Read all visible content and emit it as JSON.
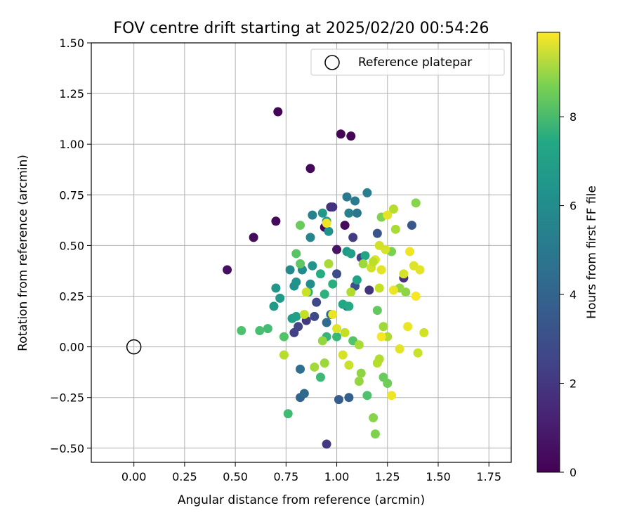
{
  "chart_data": {
    "type": "scatter",
    "title": "FOV centre drift starting at 2025/02/20 00:54:26",
    "xlabel": "Angular distance from reference (arcmin)",
    "ylabel": "Rotation from reference (arcmin)",
    "xlim": [
      -0.21,
      1.86
    ],
    "ylim": [
      -0.57,
      1.5
    ],
    "xticks": [
      0.0,
      0.25,
      0.5,
      0.75,
      1.0,
      1.25,
      1.5,
      1.75
    ],
    "xtick_labels": [
      "0.00",
      "0.25",
      "0.50",
      "0.75",
      "1.00",
      "1.25",
      "1.50",
      "1.75"
    ],
    "yticks": [
      -0.5,
      -0.25,
      0.0,
      0.25,
      0.5,
      0.75,
      1.0,
      1.25,
      1.5
    ],
    "ytick_labels": [
      "−0.50",
      "−0.25",
      "0.00",
      "0.25",
      "0.50",
      "0.75",
      "1.00",
      "1.25",
      "1.50"
    ],
    "grid": true,
    "legend": {
      "position": "top-right",
      "entries": [
        "Reference platepar"
      ]
    },
    "reference_point": {
      "x": 0.0,
      "y": 0.0,
      "marker": "hollow-circle"
    },
    "colorbar": {
      "label": "Hours from first FF file",
      "range": [
        0,
        9.9
      ],
      "ticks": [
        0,
        2,
        4,
        6,
        8
      ],
      "tick_labels": [
        "0",
        "2",
        "4",
        "6",
        "8"
      ],
      "colormap": "viridis"
    },
    "series": [
      {
        "marker": "filled-circle",
        "points": [
          {
            "x": 0.71,
            "y": 1.16,
            "h": 0.1
          },
          {
            "x": 1.02,
            "y": 1.05,
            "h": 0.1
          },
          {
            "x": 1.07,
            "y": 1.04,
            "h": 0.1
          },
          {
            "x": 0.87,
            "y": 0.88,
            "h": 0.2
          },
          {
            "x": 0.7,
            "y": 0.62,
            "h": 0.2
          },
          {
            "x": 0.59,
            "y": 0.54,
            "h": 0.3
          },
          {
            "x": 0.46,
            "y": 0.38,
            "h": 0.4
          },
          {
            "x": 0.94,
            "y": 0.59,
            "h": 0.3
          },
          {
            "x": 1.04,
            "y": 0.6,
            "h": 0.3
          },
          {
            "x": 1.0,
            "y": 0.48,
            "h": 0.5
          },
          {
            "x": 0.97,
            "y": 0.69,
            "h": 1.4
          },
          {
            "x": 0.98,
            "y": 0.69,
            "h": 1.5
          },
          {
            "x": 0.95,
            "y": -0.48,
            "h": 1.6
          },
          {
            "x": 1.08,
            "y": 0.54,
            "h": 1.7
          },
          {
            "x": 1.16,
            "y": 0.28,
            "h": 1.5
          },
          {
            "x": 1.33,
            "y": 0.34,
            "h": 1.4
          },
          {
            "x": 1.12,
            "y": 0.44,
            "h": 1.8
          },
          {
            "x": 0.85,
            "y": 0.13,
            "h": 1.6
          },
          {
            "x": 0.79,
            "y": 0.07,
            "h": 1.9
          },
          {
            "x": 0.81,
            "y": 0.1,
            "h": 2.0
          },
          {
            "x": 0.89,
            "y": 0.15,
            "h": 2.2
          },
          {
            "x": 0.9,
            "y": 0.22,
            "h": 2.1
          },
          {
            "x": 1.0,
            "y": 0.36,
            "h": 2.3
          },
          {
            "x": 1.09,
            "y": 0.3,
            "h": 2.4
          },
          {
            "x": 1.2,
            "y": 0.56,
            "h": 2.6
          },
          {
            "x": 1.37,
            "y": 0.6,
            "h": 2.7
          },
          {
            "x": 1.01,
            "y": -0.26,
            "h": 2.9
          },
          {
            "x": 1.06,
            "y": -0.25,
            "h": 3.0
          },
          {
            "x": 0.82,
            "y": -0.25,
            "h": 3.2
          },
          {
            "x": 0.84,
            "y": -0.23,
            "h": 3.4
          },
          {
            "x": 0.82,
            "y": -0.11,
            "h": 3.7
          },
          {
            "x": 0.95,
            "y": 0.12,
            "h": 3.5
          },
          {
            "x": 0.97,
            "y": 0.16,
            "h": 3.6
          },
          {
            "x": 1.05,
            "y": 0.2,
            "h": 3.8
          },
          {
            "x": 1.1,
            "y": 0.66,
            "h": 3.9
          },
          {
            "x": 1.05,
            "y": 0.74,
            "h": 4.0
          },
          {
            "x": 1.09,
            "y": 0.72,
            "h": 4.1
          },
          {
            "x": 1.15,
            "y": 0.76,
            "h": 4.2
          },
          {
            "x": 1.06,
            "y": 0.66,
            "h": 4.3
          },
          {
            "x": 0.88,
            "y": 0.65,
            "h": 4.4
          },
          {
            "x": 0.87,
            "y": 0.54,
            "h": 4.5
          },
          {
            "x": 0.77,
            "y": 0.38,
            "h": 4.6
          },
          {
            "x": 0.83,
            "y": 0.38,
            "h": 4.7
          },
          {
            "x": 0.87,
            "y": 0.31,
            "h": 4.8
          },
          {
            "x": 0.79,
            "y": 0.3,
            "h": 4.9
          },
          {
            "x": 0.8,
            "y": 0.32,
            "h": 5.0
          },
          {
            "x": 0.88,
            "y": 0.4,
            "h": 5.1
          },
          {
            "x": 0.7,
            "y": 0.29,
            "h": 5.2
          },
          {
            "x": 0.72,
            "y": 0.24,
            "h": 5.3
          },
          {
            "x": 0.69,
            "y": 0.2,
            "h": 5.4
          },
          {
            "x": 0.78,
            "y": 0.14,
            "h": 5.5
          },
          {
            "x": 0.8,
            "y": 0.15,
            "h": 5.6
          },
          {
            "x": 0.96,
            "y": 0.57,
            "h": 5.0
          },
          {
            "x": 0.93,
            "y": 0.66,
            "h": 5.2
          },
          {
            "x": 0.95,
            "y": 0.62,
            "h": 5.3
          },
          {
            "x": 1.05,
            "y": 0.47,
            "h": 5.4
          },
          {
            "x": 1.07,
            "y": 0.46,
            "h": 5.6
          },
          {
            "x": 1.1,
            "y": 0.33,
            "h": 5.7
          },
          {
            "x": 1.14,
            "y": 0.45,
            "h": 5.8
          },
          {
            "x": 1.03,
            "y": 0.21,
            "h": 5.9
          },
          {
            "x": 1.06,
            "y": 0.2,
            "h": 6.0
          },
          {
            "x": 0.92,
            "y": 0.36,
            "h": 6.1
          },
          {
            "x": 0.98,
            "y": 0.31,
            "h": 6.2
          },
          {
            "x": 0.94,
            "y": 0.26,
            "h": 6.3
          },
          {
            "x": 0.86,
            "y": 0.27,
            "h": 6.4
          },
          {
            "x": 0.95,
            "y": 0.05,
            "h": 6.5
          },
          {
            "x": 1.0,
            "y": 0.05,
            "h": 6.6
          },
          {
            "x": 0.92,
            "y": -0.15,
            "h": 6.7
          },
          {
            "x": 0.76,
            "y": -0.33,
            "h": 6.8
          },
          {
            "x": 0.66,
            "y": 0.09,
            "h": 6.9
          },
          {
            "x": 0.62,
            "y": 0.08,
            "h": 7.0
          },
          {
            "x": 0.53,
            "y": 0.08,
            "h": 7.1
          },
          {
            "x": 0.74,
            "y": 0.05,
            "h": 7.2
          },
          {
            "x": 0.8,
            "y": 0.46,
            "h": 7.3
          },
          {
            "x": 0.82,
            "y": 0.41,
            "h": 7.4
          },
          {
            "x": 0.82,
            "y": 0.6,
            "h": 7.6
          },
          {
            "x": 1.15,
            "y": -0.24,
            "h": 7.1
          },
          {
            "x": 1.08,
            "y": 0.03,
            "h": 7.2
          },
          {
            "x": 1.2,
            "y": 0.18,
            "h": 7.5
          },
          {
            "x": 1.23,
            "y": -0.15,
            "h": 7.6
          },
          {
            "x": 1.25,
            "y": -0.18,
            "h": 7.7
          },
          {
            "x": 1.27,
            "y": 0.47,
            "h": 7.9
          },
          {
            "x": 1.22,
            "y": 0.64,
            "h": 8.0
          },
          {
            "x": 1.19,
            "y": -0.43,
            "h": 8.0
          },
          {
            "x": 1.18,
            "y": -0.35,
            "h": 8.1
          },
          {
            "x": 1.12,
            "y": -0.13,
            "h": 8.2
          },
          {
            "x": 1.11,
            "y": -0.17,
            "h": 8.3
          },
          {
            "x": 0.93,
            "y": 0.03,
            "h": 8.3
          },
          {
            "x": 0.94,
            "y": -0.08,
            "h": 8.4
          },
          {
            "x": 0.89,
            "y": -0.1,
            "h": 8.5
          },
          {
            "x": 0.96,
            "y": 0.41,
            "h": 8.6
          },
          {
            "x": 1.13,
            "y": 0.41,
            "h": 8.4
          },
          {
            "x": 1.23,
            "y": 0.1,
            "h": 8.5
          },
          {
            "x": 1.25,
            "y": 0.05,
            "h": 8.7
          },
          {
            "x": 1.21,
            "y": -0.06,
            "h": 8.7
          },
          {
            "x": 1.2,
            "y": -0.08,
            "h": 8.8
          },
          {
            "x": 1.29,
            "y": 0.58,
            "h": 8.6
          },
          {
            "x": 1.28,
            "y": 0.68,
            "h": 8.8
          },
          {
            "x": 1.39,
            "y": 0.71,
            "h": 8.1
          },
          {
            "x": 1.34,
            "y": 0.27,
            "h": 8.2
          },
          {
            "x": 1.31,
            "y": 0.29,
            "h": 8.3
          },
          {
            "x": 1.11,
            "y": 0.01,
            "h": 8.6
          },
          {
            "x": 1.07,
            "y": 0.27,
            "h": 8.7
          },
          {
            "x": 0.74,
            "y": -0.04,
            "h": 8.8
          },
          {
            "x": 0.84,
            "y": 0.16,
            "h": 9.0
          },
          {
            "x": 0.85,
            "y": 0.27,
            "h": 9.1
          },
          {
            "x": 1.21,
            "y": 0.5,
            "h": 9.2
          },
          {
            "x": 1.24,
            "y": 0.48,
            "h": 9.3
          },
          {
            "x": 1.19,
            "y": 0.43,
            "h": 9.4
          },
          {
            "x": 1.22,
            "y": 0.38,
            "h": 9.5
          },
          {
            "x": 1.28,
            "y": 0.28,
            "h": 9.6
          },
          {
            "x": 1.33,
            "y": 0.36,
            "h": 9.3
          },
          {
            "x": 1.36,
            "y": 0.47,
            "h": 9.7
          },
          {
            "x": 1.38,
            "y": 0.4,
            "h": 9.4
          },
          {
            "x": 1.41,
            "y": 0.38,
            "h": 9.5
          },
          {
            "x": 1.39,
            "y": 0.25,
            "h": 9.8
          },
          {
            "x": 1.35,
            "y": 0.1,
            "h": 9.6
          },
          {
            "x": 1.43,
            "y": 0.07,
            "h": 9.2
          },
          {
            "x": 1.31,
            "y": -0.01,
            "h": 9.5
          },
          {
            "x": 1.27,
            "y": -0.24,
            "h": 9.7
          },
          {
            "x": 1.4,
            "y": -0.03,
            "h": 9.1
          },
          {
            "x": 1.22,
            "y": 0.05,
            "h": 9.8
          },
          {
            "x": 1.04,
            "y": 0.07,
            "h": 9.0
          },
          {
            "x": 1.0,
            "y": 0.09,
            "h": 9.4
          },
          {
            "x": 0.98,
            "y": 0.16,
            "h": 9.6
          },
          {
            "x": 1.03,
            "y": -0.04,
            "h": 9.3
          },
          {
            "x": 1.06,
            "y": -0.09,
            "h": 9.1
          },
          {
            "x": 0.95,
            "y": 0.61,
            "h": 9.7
          },
          {
            "x": 1.25,
            "y": 0.65,
            "h": 9.5
          },
          {
            "x": 1.17,
            "y": 0.39,
            "h": 9.2
          },
          {
            "x": 1.21,
            "y": 0.29,
            "h": 9.0
          },
          {
            "x": 1.18,
            "y": 0.42,
            "h": 8.9
          }
        ]
      }
    ]
  }
}
